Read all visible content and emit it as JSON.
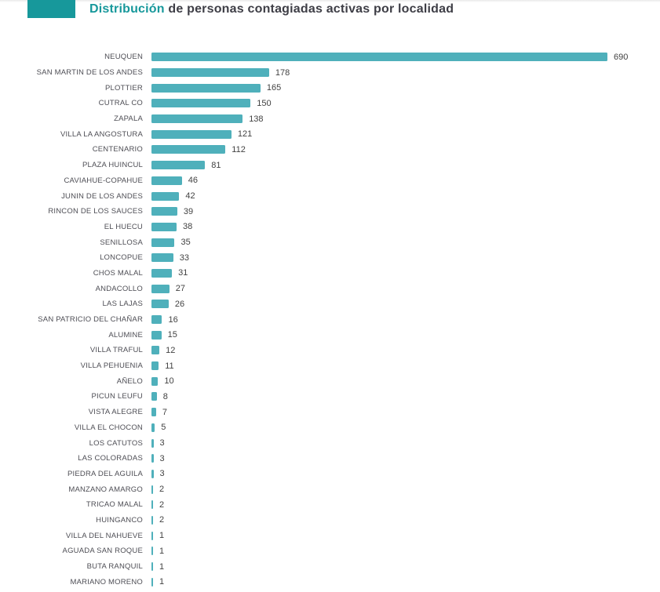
{
  "header": {
    "title_highlight": "Distribución",
    "title_rest": " de personas contagiadas activas por localidad"
  },
  "colors": {
    "bar": "#4fb0bb",
    "accent_block": "#17989b",
    "title_highlight": "#17989b",
    "title_text": "#3e3e46",
    "category_label_text": "#4e4e55",
    "value_label_text": "#424242",
    "background": "#ffffff"
  },
  "chart_data": {
    "type": "bar",
    "orientation": "horizontal",
    "title": "Distribución de personas contagiadas activas por localidad",
    "xlabel": "",
    "ylabel": "",
    "xlim": [
      0,
      690
    ],
    "grid": false,
    "legend": false,
    "value_labels": true,
    "categories": [
      "NEUQUEN",
      "SAN MARTIN DE LOS ANDES",
      "PLOTTIER",
      "CUTRAL CO",
      "ZAPALA",
      "VILLA LA ANGOSTURA",
      "CENTENARIO",
      "PLAZA HUINCUL",
      "CAVIAHUE-COPAHUE",
      "JUNIN DE LOS ANDES",
      "RINCON DE LOS SAUCES",
      "EL HUECU",
      "SENILLOSA",
      "LONCOPUE",
      "CHOS MALAL",
      "ANDACOLLO",
      "LAS LAJAS",
      "SAN PATRICIO DEL CHAÑAR",
      "ALUMINE",
      "VILLA TRAFUL",
      "VILLA PEHUENIA",
      "AÑELO",
      "PICUN LEUFU",
      "VISTA ALEGRE",
      "VILLA EL CHOCON",
      "LOS CATUTOS",
      "LAS COLORADAS",
      "PIEDRA DEL AGUILA",
      "MANZANO AMARGO",
      "TRICAO MALAL",
      "HUINGANCO",
      "VILLA DEL NAHUEVE",
      "AGUADA SAN ROQUE",
      "BUTA RANQUIL",
      "MARIANO MORENO"
    ],
    "values": [
      690,
      178,
      165,
      150,
      138,
      121,
      112,
      81,
      46,
      42,
      39,
      38,
      35,
      33,
      31,
      27,
      26,
      16,
      15,
      12,
      11,
      10,
      8,
      7,
      5,
      3,
      3,
      3,
      2,
      2,
      2,
      1,
      1,
      1,
      1
    ]
  }
}
